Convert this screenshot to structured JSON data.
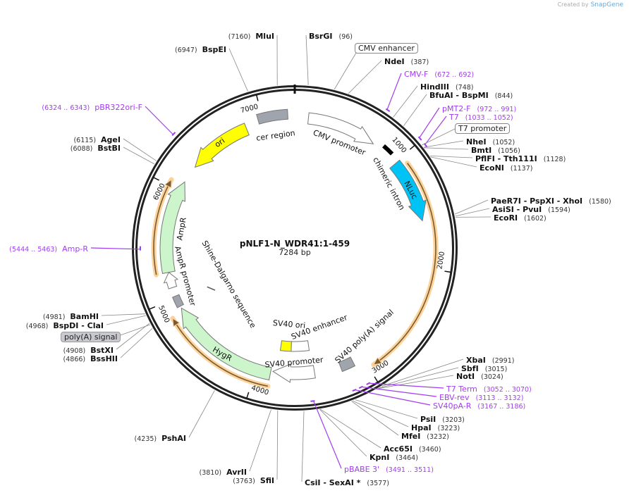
{
  "credit": {
    "prefix": "Created by",
    "brand": "SnapGene"
  },
  "plasmid": {
    "name": "pNLF1-N_WDR41:1-459",
    "length_label": "7284 bp",
    "length": 7284
  },
  "scale_ticks": [
    1000,
    2000,
    3000,
    4000,
    5000,
    6000,
    7000
  ],
  "enzymes": [
    {
      "name": "BsrGI",
      "position": 96
    },
    {
      "name": "NdeI",
      "position": 387
    },
    {
      "name": "HindIII",
      "position": 748
    },
    {
      "name": "BfuAI   - BspMI",
      "position": 844
    },
    {
      "name": "NheI",
      "position": 1052
    },
    {
      "name": "BmtI",
      "position": 1056
    },
    {
      "name": "PflFI   - Tth111I",
      "position": 1128
    },
    {
      "name": "EcoNI",
      "position": 1137
    },
    {
      "name": "PaeR7I   - PspXI   - XhoI",
      "position": 1580
    },
    {
      "name": "AsiSI   - PvuI",
      "position": 1594
    },
    {
      "name": "EcoRI",
      "position": 1602
    },
    {
      "name": "XbaI",
      "position": 2991
    },
    {
      "name": "SbfI",
      "position": 3015
    },
    {
      "name": "NotI",
      "position": 3024
    },
    {
      "name": "PsiI",
      "position": 3203
    },
    {
      "name": "HpaI",
      "position": 3223
    },
    {
      "name": "MfeI",
      "position": 3232
    },
    {
      "name": "Acc65I",
      "position": 3460
    },
    {
      "name": "KpnI",
      "position": 3464
    },
    {
      "name": "CsiI   - SexAI *",
      "position": 3577
    },
    {
      "name": "SfiI",
      "position": 3763
    },
    {
      "name": "AvrII",
      "position": 3810
    },
    {
      "name": "PshAI",
      "position": 4235
    },
    {
      "name": "BamHI",
      "position": 4981
    },
    {
      "name": "BspDI   - ClaI",
      "position": 4968
    },
    {
      "name": "BstXI",
      "position": 4908
    },
    {
      "name": "BssHII",
      "position": 4866
    },
    {
      "name": "BstBI",
      "position": 6088
    },
    {
      "name": "AgeI",
      "position": 6115
    },
    {
      "name": "BspEI",
      "position": 6947
    },
    {
      "name": "MluI",
      "position": 7160
    }
  ],
  "primers": [
    {
      "name": "CMV-F",
      "start": 672,
      "end": 692,
      "direction": "forward"
    },
    {
      "name": "pMT2-F",
      "start": 972,
      "end": 991,
      "direction": "forward"
    },
    {
      "name": "T7",
      "start": 1033,
      "end": 1052,
      "direction": "forward"
    },
    {
      "name": "T7 Term",
      "start": 3052,
      "end": 3070,
      "direction": "reverse"
    },
    {
      "name": "EBV-rev",
      "start": 3113,
      "end": 3132,
      "direction": "reverse"
    },
    {
      "name": "SV40pA-R",
      "start": 3167,
      "end": 3186,
      "direction": "reverse"
    },
    {
      "name": "pBABE 3'",
      "start": 3491,
      "end": 3511,
      "direction": "reverse"
    },
    {
      "name": "pBR322ori-F",
      "start": 6324,
      "end": 6343,
      "direction": "forward"
    },
    {
      "name": "Amp-R",
      "start": 5444,
      "end": 5463,
      "direction": "reverse"
    }
  ],
  "callouts": [
    {
      "label": "CMV enhancer"
    },
    {
      "label": "T7 promoter"
    },
    {
      "label": "poly(A) signal"
    }
  ],
  "features": [
    {
      "label": "cer region",
      "color": "#a0a4ad"
    },
    {
      "label": "CMV promoter",
      "color": "#ffffff"
    },
    {
      "label": "chimeric intron",
      "color": "#000000"
    },
    {
      "label": "NLuc",
      "color": "#00c3f5"
    },
    {
      "label": "ori",
      "color": "#ffff00"
    },
    {
      "label": "AmpR",
      "color": "#ccf5cc"
    },
    {
      "label": "AmpR promoter",
      "color": "#ffffff"
    },
    {
      "label": "Shine-Dalgarno sequence",
      "color": "#555555"
    },
    {
      "label": "SV40 ori",
      "color": "#ffff00"
    },
    {
      "label": "SV40 enhancer",
      "color": "#ffffff"
    },
    {
      "label": "SV40 poly(A) signal",
      "color": "#a0a4ad"
    },
    {
      "label": "SV40 promoter",
      "color": "#ffffff"
    },
    {
      "label": "HygR",
      "color": "#ccf5cc"
    },
    {
      "label": "AmpR",
      "color": "#ccf5cc"
    }
  ],
  "colors": {
    "primer": "#a23cf0",
    "orf_highlight": "#fbd39b",
    "orf_line": "#7a5a30",
    "backbone": "#222222"
  }
}
